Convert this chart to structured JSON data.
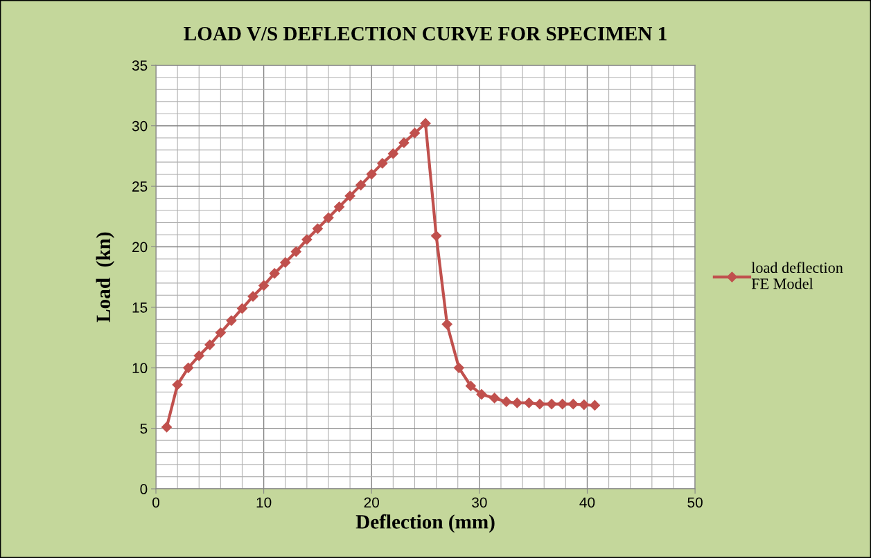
{
  "chart_data": {
    "type": "line",
    "title": "LOAD V/S DEFLECTION CURVE FOR SPECIMEN 1",
    "xlabel": "Deflection (mm)",
    "ylabel": "Load  (kn)",
    "series": [
      {
        "name": "load deflection\nFE Model",
        "color": "#c0504d",
        "x": [
          1,
          2,
          3,
          4,
          5,
          6,
          7,
          8,
          9,
          10,
          11,
          12,
          13,
          14,
          15,
          16,
          17,
          18,
          19,
          20,
          21,
          22,
          23,
          24,
          25,
          26.0,
          27.0,
          28.1,
          29.2,
          30.2,
          31.4,
          32.5,
          33.5,
          34.6,
          35.6,
          36.7,
          37.7,
          38.7,
          39.7,
          40.7
        ],
        "values": [
          5.1,
          8.6,
          10.0,
          11.0,
          11.9,
          12.9,
          13.9,
          14.9,
          15.9,
          16.8,
          17.8,
          18.7,
          19.6,
          20.6,
          21.5,
          22.4,
          23.3,
          24.2,
          25.1,
          26.0,
          26.9,
          27.7,
          28.6,
          29.4,
          30.2,
          20.9,
          13.6,
          10.0,
          8.5,
          7.8,
          7.5,
          7.2,
          7.1,
          7.1,
          7.0,
          7.0,
          7.0,
          7.0,
          6.95,
          6.9
        ]
      }
    ],
    "xlim": [
      0,
      50
    ],
    "xticks": [
      0,
      10,
      20,
      30,
      40,
      50
    ],
    "ylim": [
      0,
      35
    ],
    "yticks": [
      0,
      5,
      10,
      15,
      20,
      25,
      30,
      35
    ],
    "grid": true,
    "legend": "right",
    "marker": "diamond",
    "line_style": "solid"
  }
}
